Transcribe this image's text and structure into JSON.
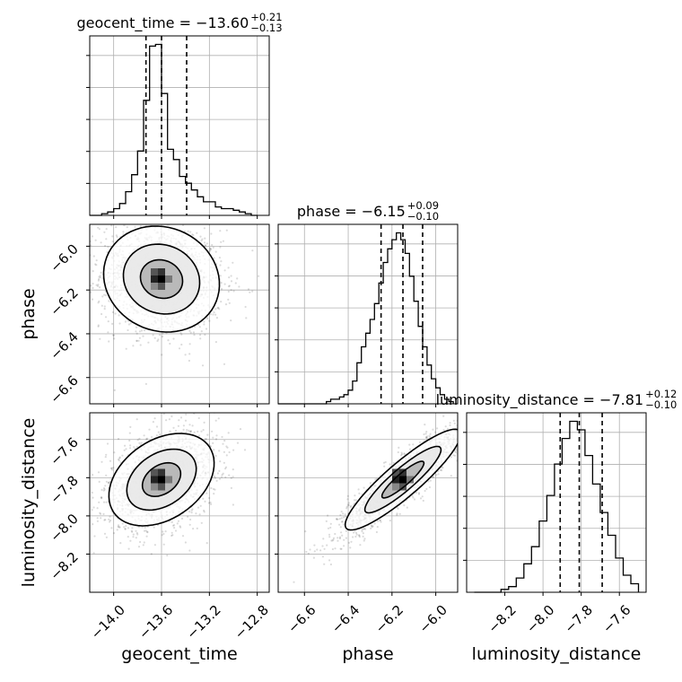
{
  "chart_data": {
    "type": "corner",
    "parameters": [
      "geocent_time",
      "phase",
      "luminosity_distance"
    ],
    "ranges": {
      "geocent_time": [
        -14.2,
        -12.7
      ],
      "phase": [
        -6.72,
        -5.9
      ],
      "luminosity_distance": [
        -8.4,
        -7.46
      ]
    },
    "ticks": {
      "geocent_time": [
        {
          "v": -14.0,
          "label": "−14.0"
        },
        {
          "v": -13.6,
          "label": "−13.6"
        },
        {
          "v": -13.2,
          "label": "−13.2"
        },
        {
          "v": -12.8,
          "label": "−12.8"
        }
      ],
      "phase": [
        {
          "v": -6.6,
          "label": "−6.6"
        },
        {
          "v": -6.4,
          "label": "−6.4"
        },
        {
          "v": -6.2,
          "label": "−6.2"
        },
        {
          "v": -6.0,
          "label": "−6.0"
        }
      ],
      "luminosity_distance": [
        {
          "v": -8.2,
          "label": "−8.2"
        },
        {
          "v": -8.0,
          "label": "−8.0"
        },
        {
          "v": -7.8,
          "label": "−7.8"
        },
        {
          "v": -7.6,
          "label": "−7.6"
        }
      ]
    },
    "titles": [
      {
        "param": "geocent_time",
        "text": "geocent_time = −13.60",
        "sup": "+0.21",
        "sub": "−0.13"
      },
      {
        "param": "phase",
        "text": "phase = −6.15",
        "sup": "+0.09",
        "sub": "−0.10"
      },
      {
        "param": "luminosity_distance",
        "text": "luminosity_distance = −7.81",
        "sup": "+0.12",
        "sub": "−0.10"
      }
    ],
    "quantiles": {
      "geocent_time": [
        -13.73,
        -13.6,
        -13.39
      ],
      "phase": [
        -6.25,
        -6.15,
        -6.06
      ],
      "luminosity_distance": [
        -7.91,
        -7.81,
        -7.69
      ]
    },
    "histograms": {
      "geocent_time": {
        "edges": [
          -14.2,
          -14.1,
          -14.05,
          -14.0,
          -13.95,
          -13.9,
          -13.85,
          -13.8,
          -13.75,
          -13.7,
          -13.65,
          -13.6,
          -13.55,
          -13.5,
          -13.45,
          -13.4,
          -13.35,
          -13.3,
          -13.25,
          -13.2,
          -13.15,
          -13.1,
          -13.05,
          -13.0,
          -12.95,
          -12.9,
          -12.85,
          -12.8
        ],
        "counts": [
          0,
          1,
          2,
          4,
          7,
          14,
          24,
          38,
          68,
          100,
          101,
          72,
          39,
          33,
          23,
          19,
          15,
          11,
          8,
          8,
          5,
          4,
          4,
          3,
          2,
          1,
          0
        ]
      },
      "phase": {
        "edges": [
          -6.72,
          -6.5,
          -6.48,
          -6.46,
          -6.44,
          -6.42,
          -6.4,
          -6.38,
          -6.36,
          -6.34,
          -6.32,
          -6.3,
          -6.28,
          -6.26,
          -6.24,
          -6.22,
          -6.2,
          -6.18,
          -6.16,
          -6.14,
          -6.12,
          -6.1,
          -6.08,
          -6.06,
          -6.04,
          -6.02,
          -6.0,
          -5.98,
          -5.96,
          -5.94,
          -5.92
        ],
        "counts": [
          0,
          1,
          2,
          2,
          3,
          4,
          6,
          10,
          18,
          25,
          31,
          37,
          44,
          53,
          62,
          68,
          72,
          75,
          72,
          66,
          56,
          45,
          34,
          25,
          17,
          11,
          7,
          4,
          2,
          1
        ]
      },
      "luminosity_distance": {
        "edges": [
          -8.36,
          -8.22,
          -8.18,
          -8.14,
          -8.1,
          -8.06,
          -8.02,
          -7.98,
          -7.94,
          -7.9,
          -7.86,
          -7.82,
          -7.78,
          -7.74,
          -7.7,
          -7.66,
          -7.62,
          -7.58,
          -7.54,
          -7.5
        ],
        "counts": [
          0,
          1,
          2,
          5,
          10,
          16,
          25,
          34,
          45,
          54,
          60,
          57,
          48,
          38,
          28,
          20,
          12,
          6,
          3
        ]
      }
    },
    "density_2d": [
      {
        "x": "geocent_time",
        "y": "phase",
        "cx": -13.6,
        "cy": -6.15,
        "sx": 0.22,
        "sy": 0.11,
        "rho": -0.1
      },
      {
        "x": "geocent_time",
        "y": "luminosity_distance",
        "cx": -13.6,
        "cy": -7.81,
        "sx": 0.2,
        "sy": 0.11,
        "rho": 0.35
      },
      {
        "x": "phase",
        "y": "luminosity_distance",
        "cx": -6.15,
        "cy": -7.81,
        "sx": 0.12,
        "sy": 0.12,
        "rho": 0.9
      }
    ],
    "contour_levels": [
      0.118,
      0.393,
      0.675,
      0.865
    ],
    "grid": true,
    "colors": {
      "hist": "#000000",
      "points": "#000000",
      "contour": "#000000"
    }
  }
}
